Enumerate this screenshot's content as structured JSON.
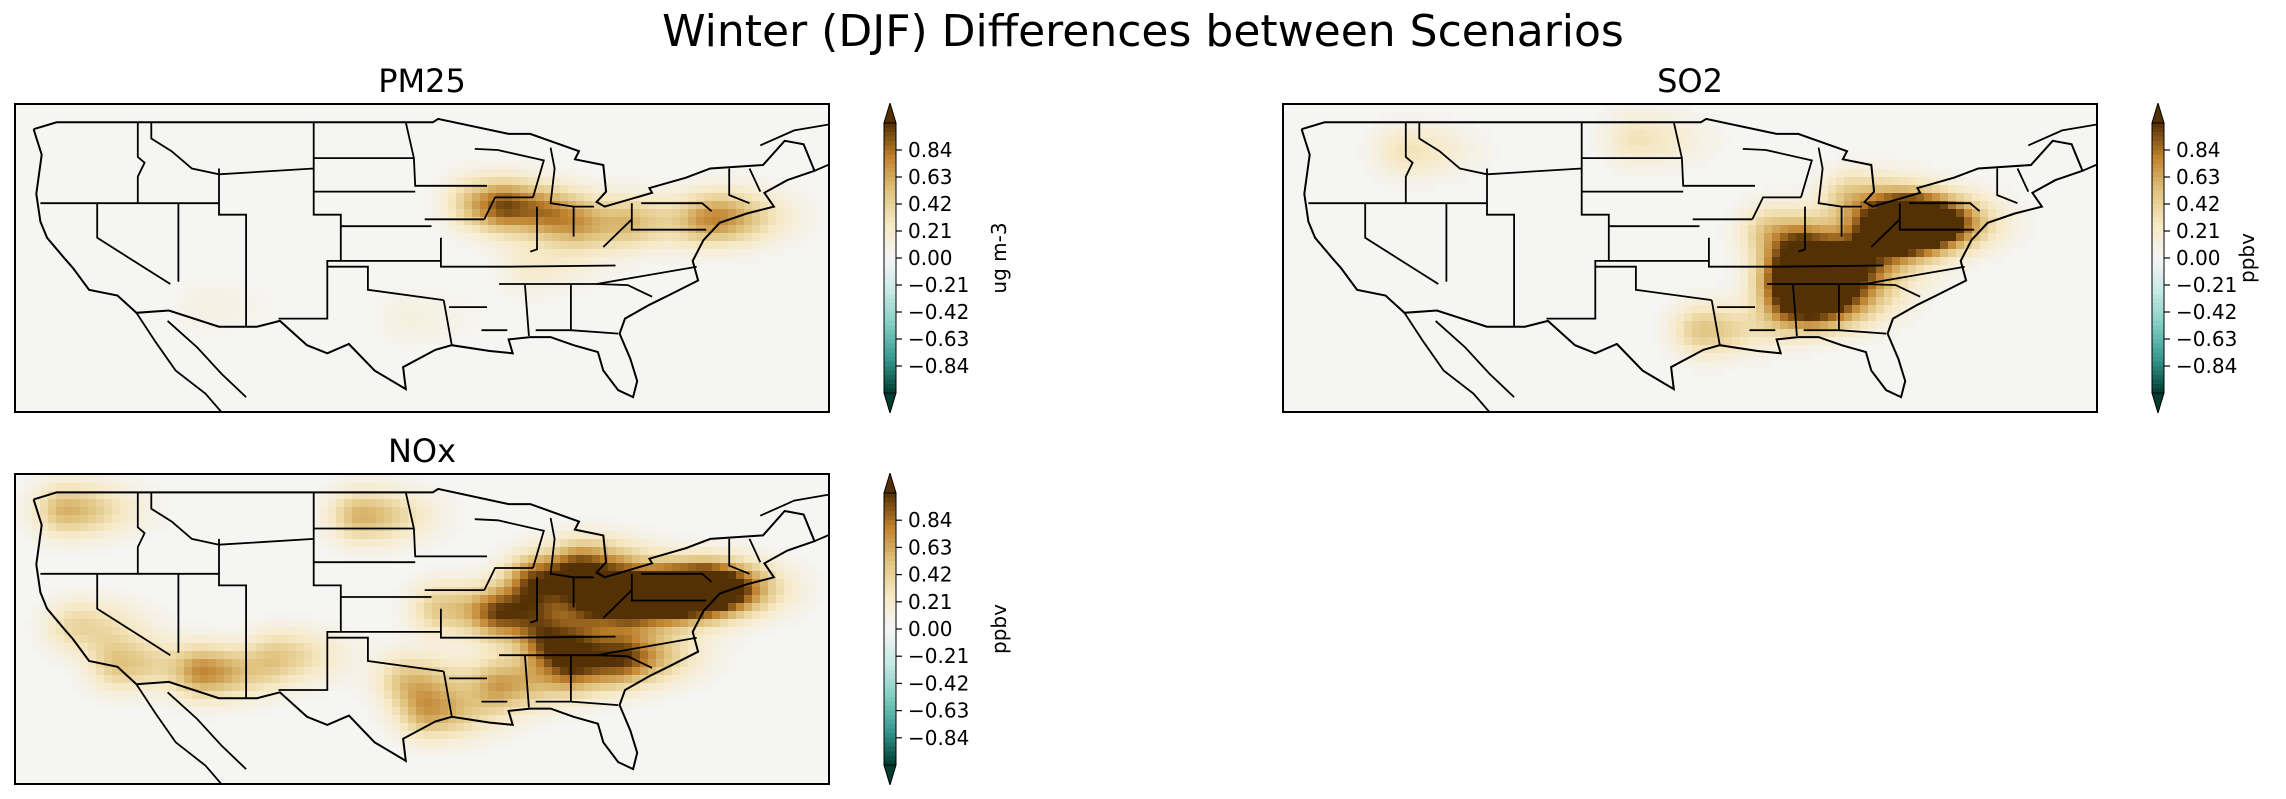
{
  "figure": {
    "suptitle": "Winter (DJF) Differences between Scenarios"
  },
  "chart_data": [
    {
      "type": "heatmap",
      "title": "PM25",
      "colorbar_label": "ug m-3",
      "colormap": "BrBG_r",
      "vmin": -1.05,
      "vmax": 1.05,
      "extend": "both",
      "colorbar_ticks": [
        "0.84",
        "0.63",
        "0.42",
        "0.21",
        "0.00",
        "−0.21",
        "−0.42",
        "−0.63",
        "−0.84"
      ],
      "hotspots": [
        {
          "lon": -89.5,
          "lat": 41.5,
          "value": 0.6
        },
        {
          "lon": -92.0,
          "lat": 42.0,
          "value": 0.5
        },
        {
          "lon": -86.0,
          "lat": 40.5,
          "value": 0.35
        },
        {
          "lon": -84.0,
          "lat": 39.8,
          "value": 0.3
        },
        {
          "lon": -80.0,
          "lat": 40.5,
          "value": 0.35
        },
        {
          "lon": -75.0,
          "lat": 40.5,
          "value": 0.45
        },
        {
          "lon": -73.5,
          "lat": 41.0,
          "value": 0.3
        },
        {
          "lon": -88.0,
          "lat": 36.5,
          "value": 0.2
        },
        {
          "lon": -97.0,
          "lat": 32.0,
          "value": 0.12
        },
        {
          "lon": -112.0,
          "lat": 33.0,
          "value": 0.1
        }
      ]
    },
    {
      "type": "heatmap",
      "title": "SO2",
      "colorbar_label": "ppbv",
      "colormap": "BrBG_r",
      "vmin": -1.05,
      "vmax": 1.05,
      "extend": "both",
      "colorbar_ticks": [
        "0.84",
        "0.63",
        "0.42",
        "0.21",
        "0.00",
        "−0.21",
        "−0.42",
        "−0.63",
        "−0.84"
      ],
      "hotspots": [
        {
          "lon": -80.5,
          "lat": 40.0,
          "value": 1.0
        },
        {
          "lon": -79.0,
          "lat": 40.5,
          "value": 0.9
        },
        {
          "lon": -82.0,
          "lat": 39.5,
          "value": 0.8
        },
        {
          "lon": -87.5,
          "lat": 37.5,
          "value": 0.9
        },
        {
          "lon": -89.0,
          "lat": 35.5,
          "value": 0.8
        },
        {
          "lon": -88.5,
          "lat": 33.0,
          "value": 0.7
        },
        {
          "lon": -86.5,
          "lat": 33.5,
          "value": 0.6
        },
        {
          "lon": -84.5,
          "lat": 36.0,
          "value": 0.6
        },
        {
          "lon": -90.0,
          "lat": 39.5,
          "value": 0.5
        },
        {
          "lon": -84.0,
          "lat": 42.5,
          "value": 0.5
        },
        {
          "lon": -95.0,
          "lat": 31.0,
          "value": 0.5
        },
        {
          "lon": -100.0,
          "lat": 47.5,
          "value": 0.3
        },
        {
          "lon": -117.0,
          "lat": 46.5,
          "value": 0.3
        }
      ]
    },
    {
      "type": "heatmap",
      "title": "NOx",
      "colorbar_label": "ppbv",
      "colormap": "BrBG_r",
      "vmin": -1.05,
      "vmax": 1.05,
      "extend": "both",
      "colorbar_ticks": [
        "0.84",
        "0.63",
        "0.42",
        "0.21",
        "0.00",
        "−0.21",
        "−0.42",
        "−0.63",
        "−0.84"
      ],
      "hotspots": [
        {
          "lon": -77.0,
          "lat": 40.5,
          "value": 1.0
        },
        {
          "lon": -80.0,
          "lat": 40.0,
          "value": 1.0
        },
        {
          "lon": -74.5,
          "lat": 40.8,
          "value": 0.9
        },
        {
          "lon": -83.0,
          "lat": 39.8,
          "value": 0.9
        },
        {
          "lon": -87.5,
          "lat": 41.5,
          "value": 0.9
        },
        {
          "lon": -90.0,
          "lat": 38.5,
          "value": 0.8
        },
        {
          "lon": -86.5,
          "lat": 36.0,
          "value": 0.8
        },
        {
          "lon": -84.5,
          "lat": 34.0,
          "value": 0.7
        },
        {
          "lon": -80.5,
          "lat": 35.0,
          "value": 0.6
        },
        {
          "lon": -90.0,
          "lat": 32.5,
          "value": 0.6
        },
        {
          "lon": -95.5,
          "lat": 30.0,
          "value": 0.6
        },
        {
          "lon": -94.5,
          "lat": 39.0,
          "value": 0.5
        },
        {
          "lon": -84.0,
          "lat": 43.0,
          "value": 0.6
        },
        {
          "lon": -97.0,
          "lat": 32.8,
          "value": 0.5
        },
        {
          "lon": -112.0,
          "lat": 33.5,
          "value": 0.7
        },
        {
          "lon": -118.3,
          "lat": 34.2,
          "value": 0.5
        },
        {
          "lon": -121.5,
          "lat": 37.5,
          "value": 0.4
        },
        {
          "lon": -100.5,
          "lat": 47.0,
          "value": 0.6
        },
        {
          "lon": -122.3,
          "lat": 47.5,
          "value": 0.6
        },
        {
          "lon": -106.5,
          "lat": 35.0,
          "value": 0.4
        }
      ]
    }
  ]
}
